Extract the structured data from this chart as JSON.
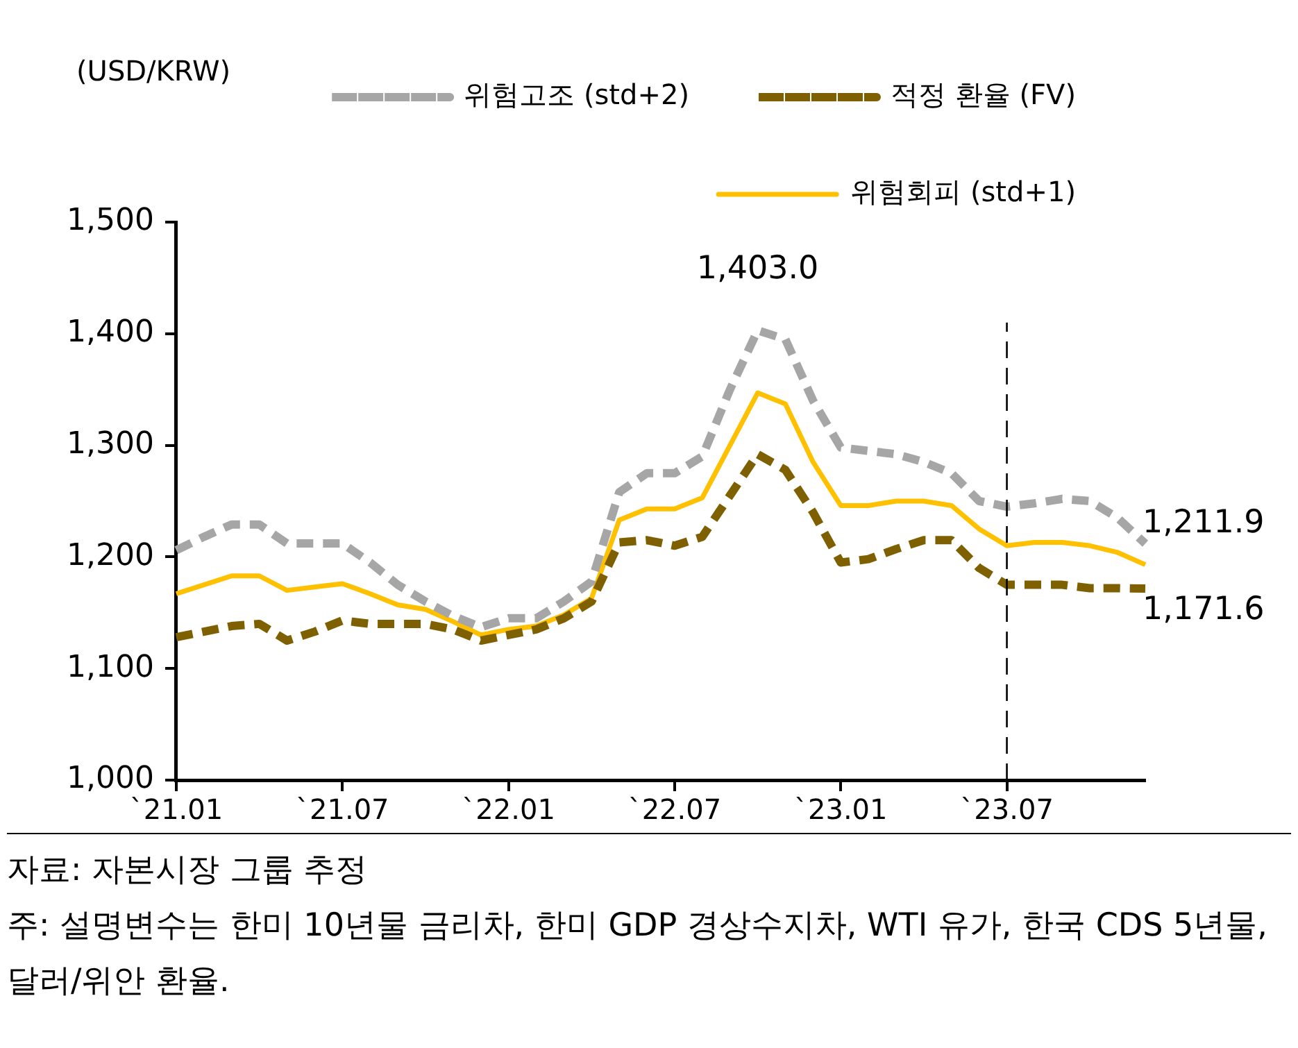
{
  "chart_data": {
    "type": "line",
    "ylabel": "(USD/KRW)",
    "categories": [
      "`21.01",
      null,
      null,
      null,
      null,
      null,
      "`21.07",
      null,
      null,
      null,
      null,
      null,
      "`22.01",
      null,
      null,
      null,
      null,
      null,
      "`22.07",
      null,
      null,
      null,
      null,
      null,
      "`23.01",
      null,
      null,
      null,
      null,
      null,
      "`23.07",
      null,
      null,
      null,
      null,
      null
    ],
    "series": [
      {
        "name": "위험고조 (std+2)",
        "color": "#a6a6a6",
        "line_style": "dashed",
        "values": [
          1206,
          1218,
          1229,
          1229,
          1212,
          1212,
          1212,
          1195,
          1175,
          1160,
          1147,
          1137,
          1145,
          1145,
          1160,
          1178,
          1258,
          1275,
          1275,
          1290,
          1350,
          1403.0,
          1395,
          1340,
          1298,
          1295,
          1292,
          1285,
          1275,
          1250,
          1245,
          1248,
          1252,
          1250,
          1235,
          1211.9
        ],
        "value_labels": [
          null,
          null,
          null,
          null,
          null,
          null,
          null,
          null,
          null,
          null,
          null,
          null,
          null,
          null,
          null,
          null,
          null,
          null,
          null,
          null,
          null,
          "1,403.0",
          null,
          null,
          null,
          null,
          null,
          null,
          null,
          null,
          null,
          null,
          null,
          null,
          null,
          "1,211.9"
        ]
      },
      {
        "name": "적정 환율 (FV)",
        "color": "#7f6000",
        "line_style": "dashed",
        "values": [
          1128,
          1133,
          1138,
          1140,
          1125,
          1133,
          1143,
          1140,
          1140,
          1140,
          1135,
          1125,
          1130,
          1135,
          1145,
          1160,
          1213,
          1215,
          1210,
          1218,
          1255,
          1292,
          1278,
          1240,
          1195,
          1198,
          1207,
          1215,
          1215,
          1190,
          1175,
          1175,
          1175,
          1172,
          1172,
          1171.6
        ],
        "value_labels": [
          null,
          null,
          null,
          null,
          null,
          null,
          null,
          null,
          null,
          null,
          null,
          null,
          null,
          null,
          null,
          null,
          null,
          null,
          null,
          null,
          null,
          null,
          null,
          null,
          null,
          null,
          null,
          null,
          null,
          null,
          null,
          null,
          null,
          null,
          null,
          "1,171.6"
        ]
      },
      {
        "name": "위험회피 (std+1)",
        "color": "#ffc000",
        "line_style": "solid",
        "values": [
          1167,
          1175,
          1183,
          1183,
          1170,
          1173,
          1176,
          1167,
          1157,
          1153,
          1142,
          1130,
          1135,
          1138,
          1148,
          1163,
          1233,
          1243,
          1243,
          1253,
          1300,
          1347,
          1337,
          1285,
          1246,
          1246,
          1250,
          1250,
          1246,
          1225,
          1210,
          1213,
          1213,
          1210,
          1204,
          1193
        ]
      }
    ],
    "ylim": [
      1000,
      1500
    ],
    "yticks": [
      {
        "value": 1000,
        "label": "1,000"
      },
      {
        "value": 1100,
        "label": "1,100"
      },
      {
        "value": 1200,
        "label": "1,200"
      },
      {
        "value": 1300,
        "label": "1,300"
      },
      {
        "value": 1400,
        "label": "1,400"
      },
      {
        "value": 1500,
        "label": "1,500"
      }
    ],
    "ref_lines": [
      {
        "axis": "x",
        "value": "`23.07",
        "color": "#000000",
        "line_style": "dashed"
      }
    ],
    "marker": "none",
    "grid": false,
    "legend": "top",
    "annotations": [
      "자료: 자본시장 그룹 추정",
      "주: 설명변수는 한미 10년물 금리차, 한미 GDP 경상수지차, WTI 유가, 한국 CDS 5년물, 달러/위안 환율."
    ]
  }
}
